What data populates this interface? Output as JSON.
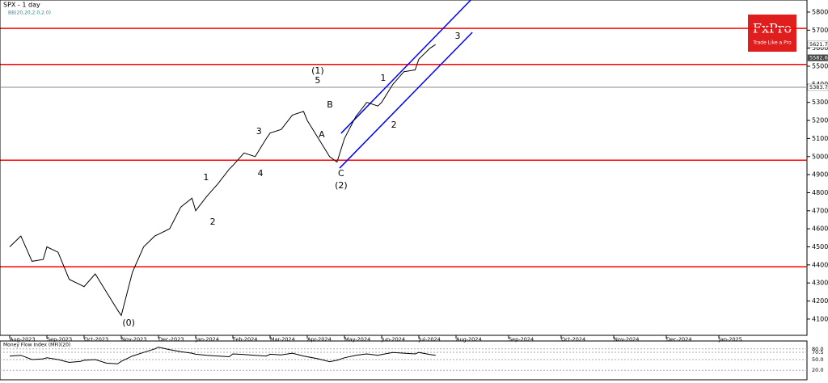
{
  "logo": {
    "name": "FxPro",
    "tagline": "Trade Like a Pro"
  },
  "chart_data": [
    {
      "type": "line",
      "title": "SPX - 1 day",
      "subtitle": "BB(20,20,2.0,2.0)",
      "ylim": [
        4010,
        5867
      ],
      "yticks": [
        4100,
        4200,
        4300,
        4400,
        4500,
        4600,
        4700,
        4800,
        4900,
        5000,
        5100,
        5200,
        5300,
        5400,
        5500,
        5600,
        5700,
        5800
      ],
      "xlim": [
        -0.25,
        18.4
      ],
      "xticks": [
        {
          "value": 0,
          "label": "Aug-2023"
        },
        {
          "value": 1,
          "label": "Sep-2023"
        },
        {
          "value": 2,
          "label": "Oct-2023"
        },
        {
          "value": 3,
          "label": "Nov-2023"
        },
        {
          "value": 4,
          "label": "Dec-2023"
        },
        {
          "value": 5,
          "label": "Jan-2024"
        },
        {
          "value": 6,
          "label": "Feb-2024"
        },
        {
          "value": 7,
          "label": "Mar-2024"
        },
        {
          "value": 8,
          "label": "Apr-2024"
        },
        {
          "value": 9,
          "label": "May-2024"
        },
        {
          "value": 10,
          "label": "Jun-2024"
        },
        {
          "value": 11,
          "label": "Jul-2024"
        },
        {
          "value": 12,
          "label": "Aug-2024"
        },
        {
          "value": 13,
          "label": "Sep-2024"
        },
        {
          "value": 14,
          "label": "Oct-2024"
        },
        {
          "value": 15,
          "label": "Nov-2024"
        },
        {
          "value": 16,
          "label": "Dec-2024"
        },
        {
          "value": 17,
          "label": "Jan-2025"
        }
      ],
      "series": [
        {
          "name": "SPX",
          "color": "#000000",
          "x": [
            0,
            0.3,
            0.6,
            0.9,
            1.0,
            1.3,
            1.6,
            1.9,
            2.0,
            2.3,
            2.6,
            2.9,
            3.0,
            3.3,
            3.6,
            3.9,
            4.0,
            4.3,
            4.6,
            4.9,
            5.0,
            5.3,
            5.6,
            5.9,
            6.0,
            6.3,
            6.6,
            6.9,
            7.0,
            7.3,
            7.6,
            7.9,
            8.0,
            8.3,
            8.6,
            8.8,
            9.0,
            9.3,
            9.6,
            9.9,
            10.0,
            10.3,
            10.6,
            10.9,
            11.0,
            11.3,
            11.45
          ],
          "values": [
            4500,
            4560,
            4420,
            4430,
            4500,
            4470,
            4320,
            4290,
            4280,
            4350,
            4250,
            4150,
            4120,
            4360,
            4500,
            4560,
            4570,
            4600,
            4720,
            4770,
            4700,
            4780,
            4850,
            4930,
            4950,
            5020,
            5000,
            5100,
            5130,
            5150,
            5230,
            5250,
            5200,
            5100,
            5000,
            4970,
            5100,
            5220,
            5300,
            5280,
            5300,
            5400,
            5470,
            5480,
            5540,
            5600,
            5620
          ]
        }
      ],
      "levels": [
        5710,
        5510,
        4980,
        4390
      ],
      "level_color": "#ff0000",
      "price_labels": [
        5621.7,
        5582.6,
        5383.7
      ],
      "channel_color": "#0000ff",
      "channels": [
        {
          "x": [
            8.91,
            12.28
          ],
          "values": [
            5129,
            5867
          ]
        },
        {
          "x": [
            8.87,
            12.31
          ],
          "values": [
            4936,
            5688
          ]
        }
      ],
      "annotations": [
        {
          "text": "(0)",
          "x": 3.2,
          "y": 4077
        },
        {
          "text": "1",
          "x": 5.28,
          "y": 4883
        },
        {
          "text": "2",
          "x": 5.46,
          "y": 4637
        },
        {
          "text": "3",
          "x": 6.7,
          "y": 5138
        },
        {
          "text": "4",
          "x": 6.74,
          "y": 4905
        },
        {
          "text": "(1)",
          "x": 8.28,
          "y": 5473
        },
        {
          "text": "5",
          "x": 8.28,
          "y": 5420
        },
        {
          "text": "A",
          "x": 8.39,
          "y": 5120
        },
        {
          "text": "B",
          "x": 8.61,
          "y": 5285
        },
        {
          "text": "C",
          "x": 8.91,
          "y": 4905
        },
        {
          "text": "(2)",
          "x": 8.91,
          "y": 4838
        },
        {
          "text": "1",
          "x": 10.04,
          "y": 5433
        },
        {
          "text": "2",
          "x": 10.33,
          "y": 5174
        },
        {
          "text": "3",
          "x": 12.03,
          "y": 5666
        }
      ]
    },
    {
      "type": "line",
      "title": "Money Flow Index (MFI)(20)",
      "ylim": [
        0,
        100
      ],
      "yticks": [
        {
          "value": 80,
          "label": "80.0"
        },
        {
          "value": 70.5,
          "label": "70.5"
        },
        {
          "value": 50,
          "label": "50.0"
        },
        {
          "value": 20,
          "label": "20.0"
        }
      ],
      "series": [
        {
          "name": "MFI",
          "color": "#000000",
          "x": [
            0,
            0.3,
            0.6,
            0.9,
            1.0,
            1.3,
            1.6,
            1.9,
            2.0,
            2.3,
            2.6,
            2.9,
            3.0,
            3.3,
            3.6,
            3.9,
            4.0,
            4.3,
            4.6,
            4.9,
            5.0,
            5.3,
            5.6,
            5.9,
            6.0,
            6.3,
            6.6,
            6.9,
            7.0,
            7.3,
            7.6,
            7.9,
            8.0,
            8.3,
            8.6,
            8.8,
            9.0,
            9.3,
            9.6,
            9.9,
            10.0,
            10.3,
            10.6,
            10.9,
            11.0,
            11.3,
            11.45
          ],
          "values": [
            60,
            62,
            50,
            52,
            55,
            50,
            42,
            45,
            48,
            50,
            40,
            38,
            45,
            60,
            70,
            80,
            85,
            78,
            72,
            68,
            65,
            62,
            60,
            58,
            66,
            64,
            62,
            60,
            65,
            63,
            68,
            60,
            58,
            52,
            44,
            48,
            55,
            62,
            66,
            62,
            64,
            70,
            68,
            66,
            70,
            64,
            62
          ]
        }
      ]
    }
  ]
}
